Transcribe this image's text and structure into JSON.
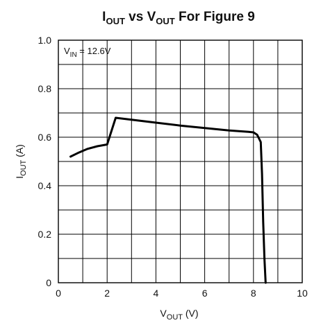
{
  "chart_data": {
    "type": "line",
    "title": {
      "main": "I",
      "sub1": "OUT",
      "mid": " vs V",
      "sub2": "OUT",
      "tail": " For Figure 9"
    },
    "xlabel": {
      "main": "V",
      "sub": "OUT",
      "tail": " (V)"
    },
    "ylabel": {
      "main": "I",
      "sub": "OUT",
      "tail": " (A)"
    },
    "annotation": {
      "main": "V",
      "sub": "IN",
      "tail": " = 12.6V"
    },
    "xlim": [
      0,
      10
    ],
    "ylim": [
      0,
      1.0
    ],
    "x_ticks": [
      0,
      2,
      4,
      6,
      8,
      10
    ],
    "x_tick_labels": [
      "0",
      "2",
      "4",
      "6",
      "8",
      "10"
    ],
    "y_ticks": [
      0,
      0.2,
      0.4,
      0.6,
      0.8,
      1.0
    ],
    "y_tick_labels": [
      "0",
      "0.2",
      "0.4",
      "0.6",
      "0.8",
      "1.0"
    ],
    "x_grid_step": 1,
    "y_grid_step": 0.1,
    "grid": true,
    "series": [
      {
        "x": [
          0.5,
          0.8,
          1.2,
          1.6,
          2.0,
          2.35,
          3.0,
          4.0,
          5.0,
          6.0,
          7.0,
          7.8,
          8.0,
          8.15,
          8.3,
          8.35,
          8.4,
          8.45,
          8.5
        ],
        "y": [
          0.52,
          0.535,
          0.552,
          0.563,
          0.57,
          0.68,
          0.672,
          0.66,
          0.648,
          0.638,
          0.628,
          0.622,
          0.62,
          0.61,
          0.58,
          0.45,
          0.25,
          0.1,
          0.0
        ]
      }
    ]
  }
}
